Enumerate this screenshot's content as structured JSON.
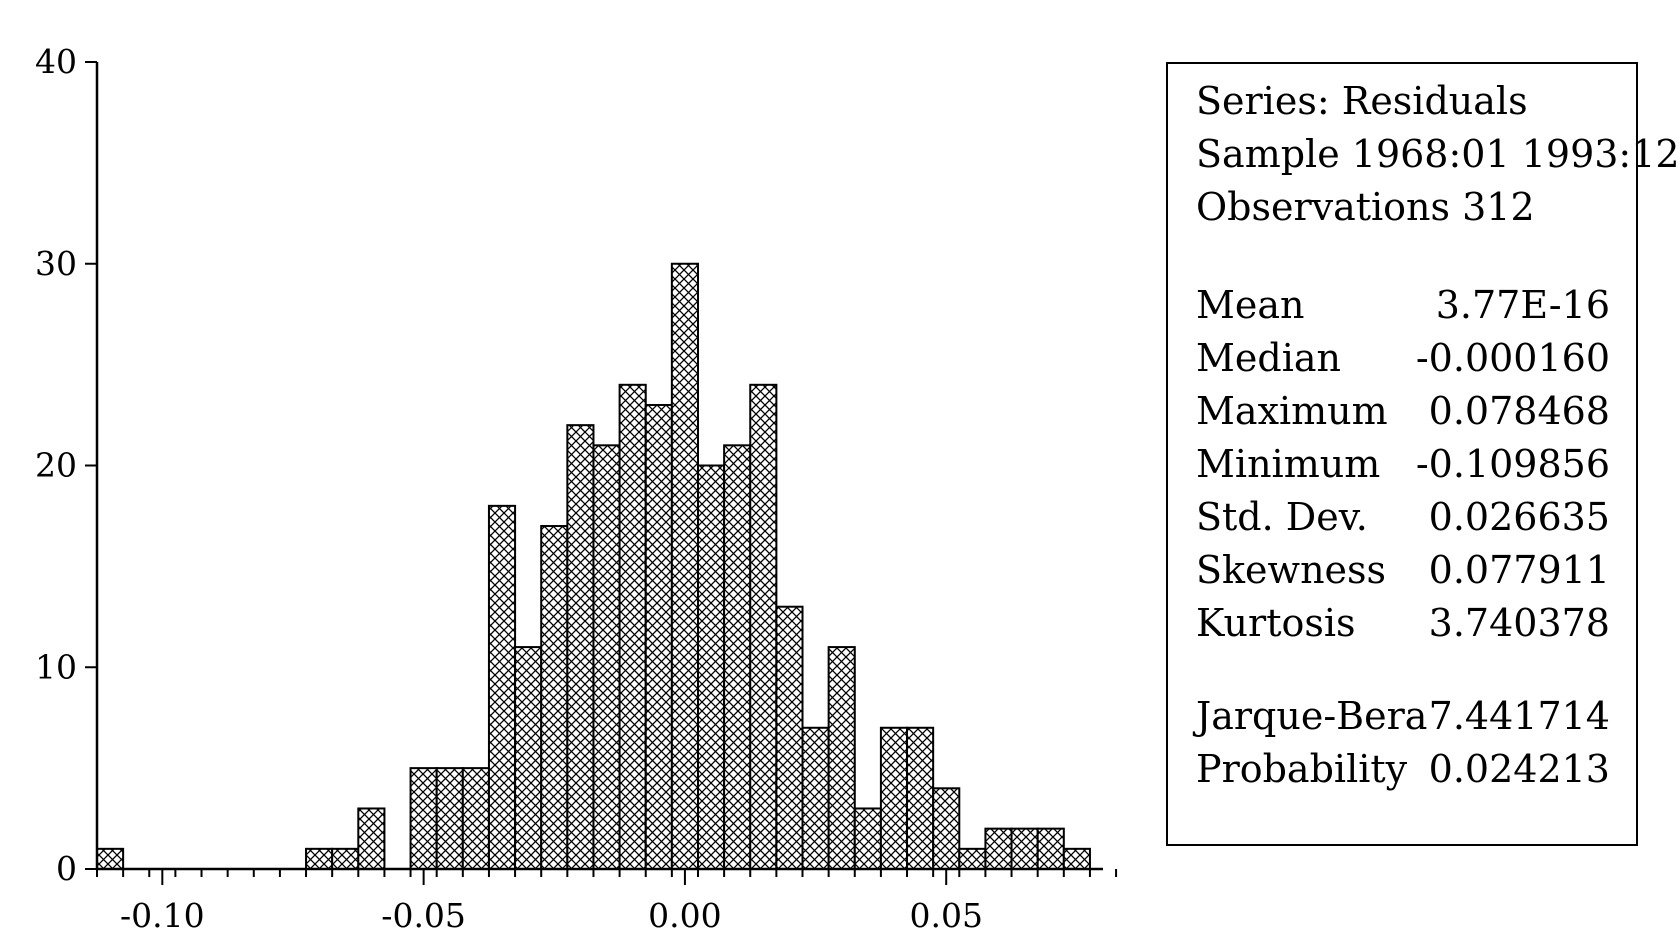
{
  "chart_data": {
    "type": "bar",
    "title": "",
    "xlabel": "",
    "ylabel": "",
    "bin_width": 0.005,
    "bins": [
      {
        "x": -0.11,
        "count": 1
      },
      {
        "x": -0.105,
        "count": 0
      },
      {
        "x": -0.1,
        "count": 0
      },
      {
        "x": -0.095,
        "count": 0
      },
      {
        "x": -0.09,
        "count": 0
      },
      {
        "x": -0.085,
        "count": 0
      },
      {
        "x": -0.08,
        "count": 0
      },
      {
        "x": -0.075,
        "count": 0
      },
      {
        "x": -0.07,
        "count": 1
      },
      {
        "x": -0.065,
        "count": 1
      },
      {
        "x": -0.06,
        "count": 3
      },
      {
        "x": -0.055,
        "count": 0
      },
      {
        "x": -0.05,
        "count": 5
      },
      {
        "x": -0.045,
        "count": 5
      },
      {
        "x": -0.04,
        "count": 5
      },
      {
        "x": -0.035,
        "count": 18
      },
      {
        "x": -0.03,
        "count": 11
      },
      {
        "x": -0.025,
        "count": 17
      },
      {
        "x": -0.02,
        "count": 22
      },
      {
        "x": -0.015,
        "count": 21
      },
      {
        "x": -0.01,
        "count": 24
      },
      {
        "x": -0.005,
        "count": 23
      },
      {
        "x": 0.0,
        "count": 30
      },
      {
        "x": 0.005,
        "count": 20
      },
      {
        "x": 0.01,
        "count": 21
      },
      {
        "x": 0.015,
        "count": 24
      },
      {
        "x": 0.02,
        "count": 13
      },
      {
        "x": 0.025,
        "count": 7
      },
      {
        "x": 0.03,
        "count": 11
      },
      {
        "x": 0.035,
        "count": 3
      },
      {
        "x": 0.04,
        "count": 7
      },
      {
        "x": 0.045,
        "count": 7
      },
      {
        "x": 0.05,
        "count": 4
      },
      {
        "x": 0.055,
        "count": 1
      },
      {
        "x": 0.06,
        "count": 2
      },
      {
        "x": 0.065,
        "count": 2
      },
      {
        "x": 0.07,
        "count": 2
      },
      {
        "x": 0.075,
        "count": 1
      }
    ],
    "xlim": [
      -0.1125,
      0.08
    ],
    "ylim": [
      0,
      40
    ],
    "x_ticks": [
      {
        "value": -0.1,
        "label": "-0.10"
      },
      {
        "value": -0.05,
        "label": "-0.05"
      },
      {
        "value": 0.0,
        "label": "0.00"
      },
      {
        "value": 0.05,
        "label": "0.05"
      }
    ],
    "y_ticks": [
      {
        "value": 0,
        "label": "0"
      },
      {
        "value": 10,
        "label": "10"
      },
      {
        "value": 20,
        "label": "20"
      },
      {
        "value": 30,
        "label": "30"
      },
      {
        "value": 40,
        "label": "40"
      }
    ],
    "bar_pattern": "crosshatch",
    "grid": false,
    "legend": "none"
  },
  "stats": {
    "header": [
      "Series: Residuals",
      "Sample 1968:01 1993:12",
      "Observations 312"
    ],
    "moments": [
      {
        "label": "Mean",
        "value": "3.77E-16"
      },
      {
        "label": "Median",
        "value": "-0.000160"
      },
      {
        "label": "Maximum",
        "value": "0.078468"
      },
      {
        "label": "Minimum",
        "value": "-0.109856"
      },
      {
        "label": "Std. Dev.",
        "value": "0.026635"
      },
      {
        "label": "Skewness",
        "value": "0.077911"
      },
      {
        "label": "Kurtosis",
        "value": "3.740378"
      }
    ],
    "tests": [
      {
        "label": "Jarque-Bera",
        "value": "7.441714"
      },
      {
        "label": "Probability",
        "value": "0.024213"
      }
    ]
  }
}
